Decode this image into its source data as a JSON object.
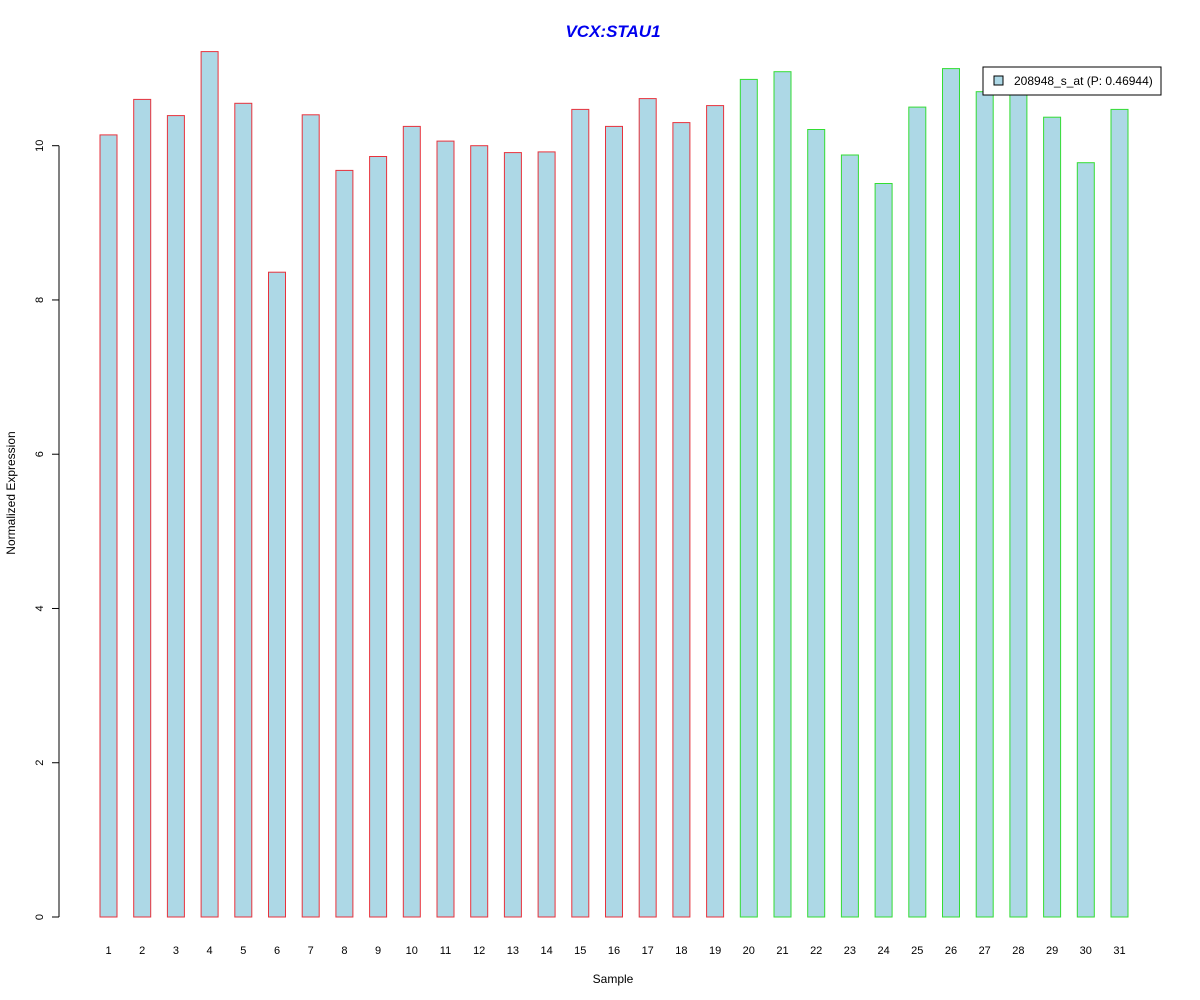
{
  "chart_data": {
    "type": "bar",
    "title": "VCX:STAU1",
    "xlabel": "Sample",
    "ylabel": "Normalized Expression",
    "categories": [
      "1",
      "2",
      "3",
      "4",
      "5",
      "6",
      "7",
      "8",
      "9",
      "10",
      "11",
      "12",
      "13",
      "14",
      "15",
      "16",
      "17",
      "18",
      "19",
      "20",
      "21",
      "22",
      "23",
      "24",
      "25",
      "26",
      "27",
      "28",
      "29",
      "30",
      "31"
    ],
    "series": [
      {
        "name": "208948_s_at (P: 0.46944)",
        "values": [
          10.14,
          10.6,
          10.39,
          11.22,
          10.55,
          8.36,
          10.4,
          9.68,
          9.86,
          10.25,
          10.06,
          10.0,
          9.91,
          9.92,
          10.47,
          10.25,
          10.61,
          10.3,
          10.52,
          10.86,
          10.96,
          10.21,
          9.88,
          9.51,
          10.5,
          11.0,
          10.7,
          10.77,
          10.37,
          9.78,
          10.47
        ]
      }
    ],
    "ylim": [
      0,
      11.5
    ],
    "yticks": [
      0,
      2,
      4,
      6,
      8,
      10
    ],
    "grid": false,
    "legend_position": "top-right",
    "colors": {
      "title": "#0000ee",
      "bar_fill": "#add8e6",
      "group1_border": "#e8323c",
      "group2_border": "#33dd33",
      "axis": "#000000"
    },
    "group1_count": 19
  }
}
